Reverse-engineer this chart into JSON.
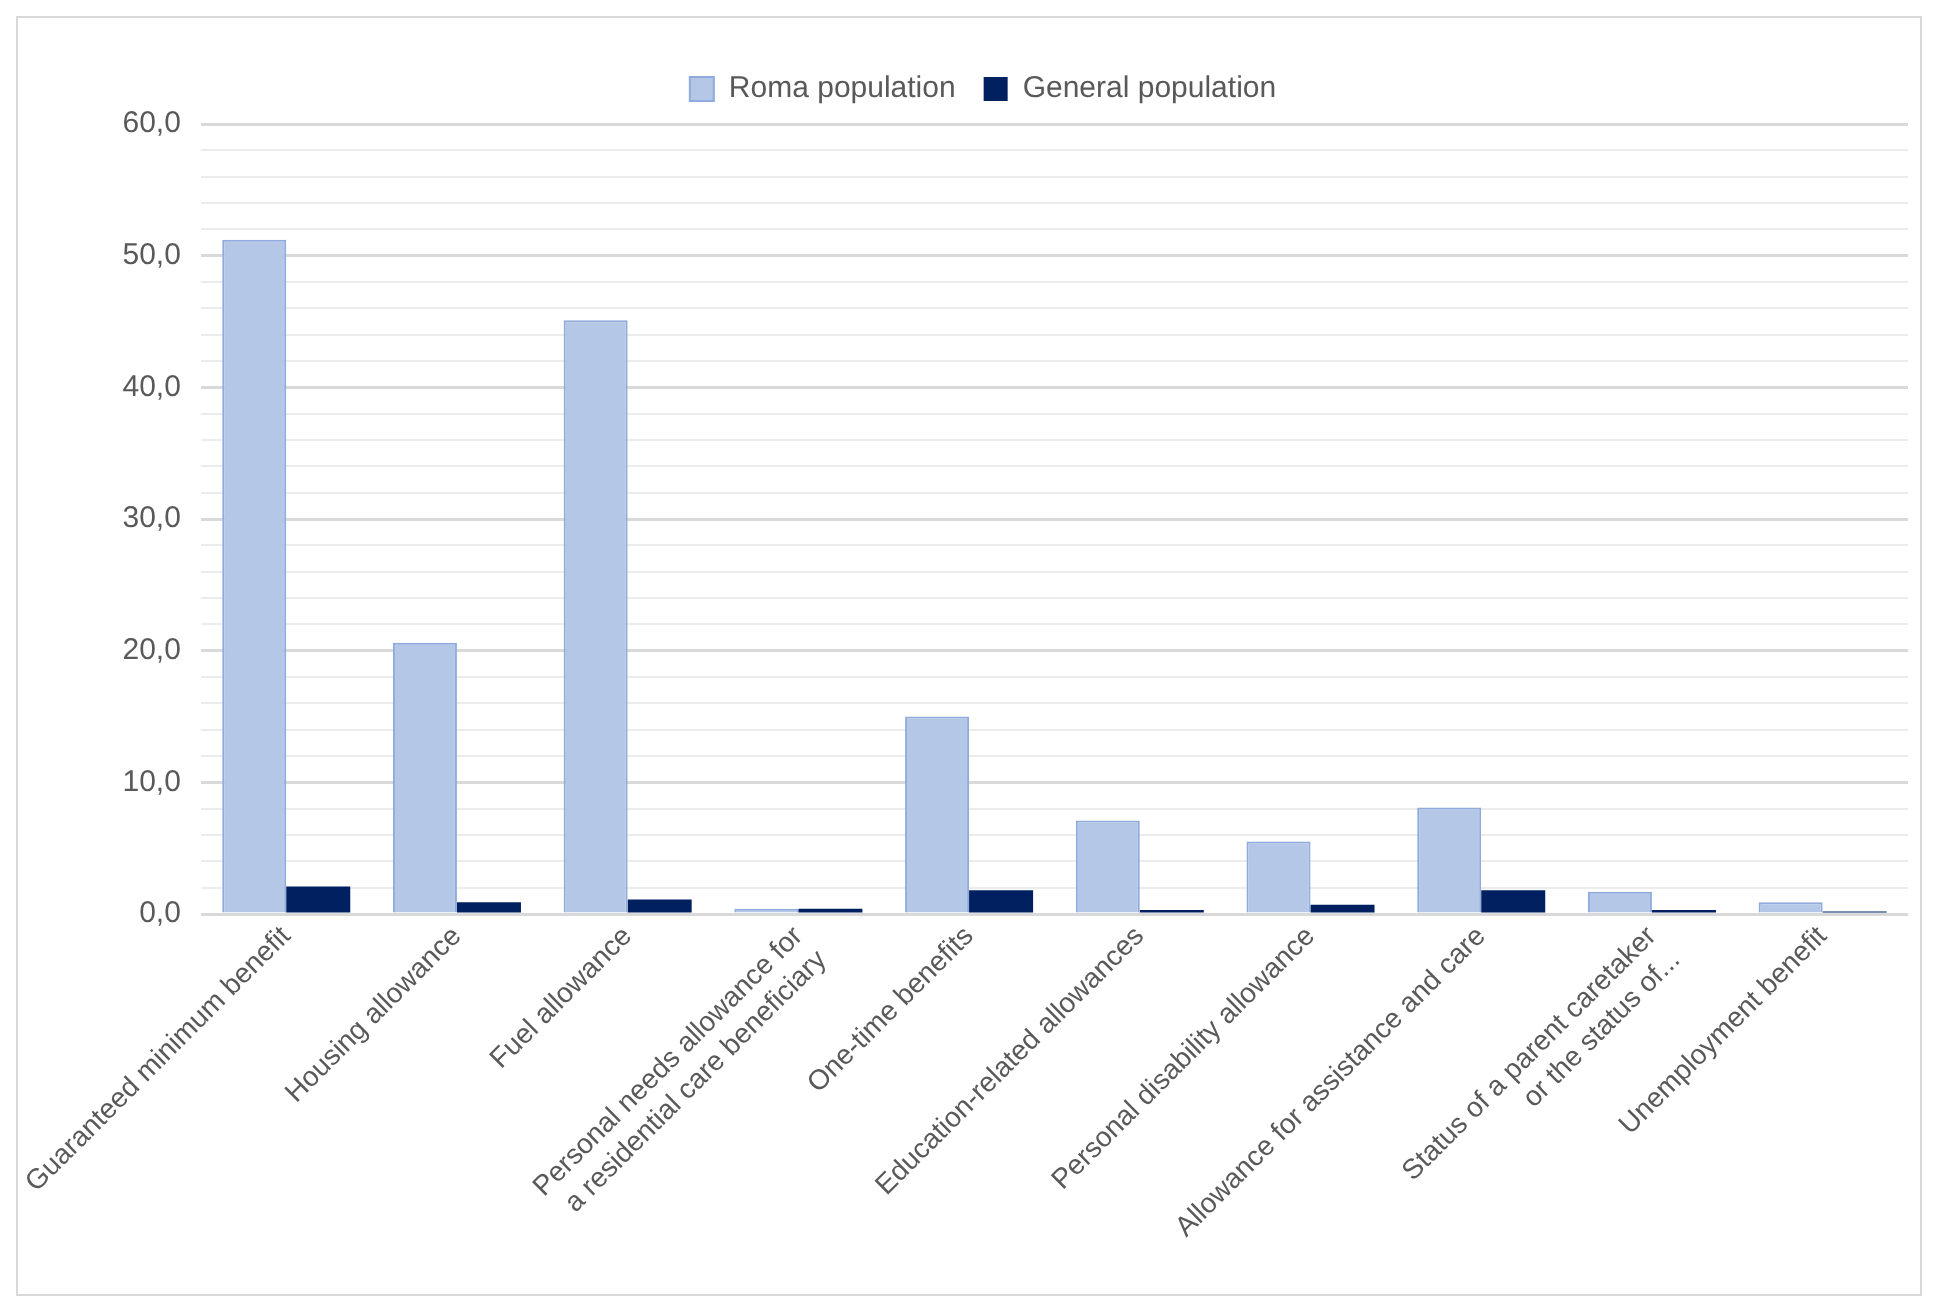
{
  "chart_data": {
    "type": "bar",
    "categories": [
      "Guaranteed minimum benefit",
      "Housing allowance",
      "Fuel allowance",
      "Personal needs allowance for\na residential care beneficiary",
      "One-time benefits",
      "Education-related allowances",
      "Personal disability allowance",
      "Allowance for assistance and care",
      "Status of a parent caretaker\nor the status of...",
      "Unemployment benefit"
    ],
    "series": [
      {
        "name": "Roma population",
        "color": "#b4c7e7",
        "values": [
          51.2,
          20.6,
          45.1,
          0.4,
          15.0,
          7.1,
          5.5,
          8.1,
          1.7,
          0.9
        ]
      },
      {
        "name": "General population",
        "color": "#002060",
        "values": [
          2.1,
          0.9,
          1.1,
          0.4,
          1.8,
          0.3,
          0.7,
          1.8,
          0.3,
          0.2
        ]
      }
    ],
    "ylim": [
      0,
      60
    ],
    "yticks": [
      {
        "value": 0,
        "label": "0,0"
      },
      {
        "value": 2,
        "label": null
      },
      {
        "value": 4,
        "label": null
      },
      {
        "value": 6,
        "label": null
      },
      {
        "value": 8,
        "label": null
      },
      {
        "value": 10,
        "label": "10,0"
      },
      {
        "value": 12,
        "label": null
      },
      {
        "value": 14,
        "label": null
      },
      {
        "value": 16,
        "label": null
      },
      {
        "value": 18,
        "label": null
      },
      {
        "value": 20,
        "label": "20,0"
      },
      {
        "value": 22,
        "label": null
      },
      {
        "value": 24,
        "label": null
      },
      {
        "value": 26,
        "label": null
      },
      {
        "value": 28,
        "label": null
      },
      {
        "value": 30,
        "label": "30,0"
      },
      {
        "value": 32,
        "label": null
      },
      {
        "value": 34,
        "label": null
      },
      {
        "value": 36,
        "label": null
      },
      {
        "value": 38,
        "label": null
      },
      {
        "value": 40,
        "label": "40,0"
      },
      {
        "value": 42,
        "label": null
      },
      {
        "value": 44,
        "label": null
      },
      {
        "value": 46,
        "label": null
      },
      {
        "value": 48,
        "label": null
      },
      {
        "value": 50,
        "label": "50,0"
      },
      {
        "value": 52,
        "label": null
      },
      {
        "value": 54,
        "label": null
      },
      {
        "value": 56,
        "label": null
      },
      {
        "value": 58,
        "label": null
      },
      {
        "value": 60,
        "label": "60,0"
      }
    ],
    "grid": "y",
    "legend": "top"
  }
}
